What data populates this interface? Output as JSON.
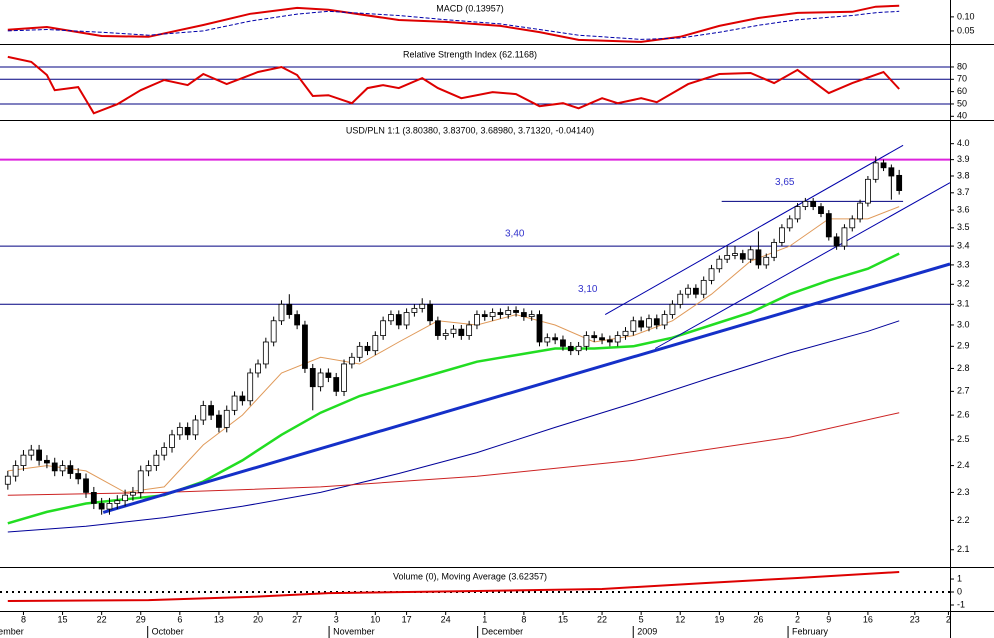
{
  "chart_data": [
    {
      "type": "line",
      "title": "MACD (0.13957)",
      "xlim": [
        -1,
        120.5
      ],
      "ylim": [
        0,
        0.16
      ],
      "yticks": [
        {
          "value": 0.1,
          "label": "0.10"
        },
        {
          "value": 0.05,
          "label": "0.05"
        }
      ],
      "series": [
        {
          "x": [
            0,
            5,
            12,
            18,
            25,
            31,
            37,
            41,
            50,
            56,
            63,
            68,
            73,
            81,
            86,
            91,
            96,
            101,
            108,
            111,
            114
          ],
          "values": [
            0.054,
            0.064,
            0.032,
            0.029,
            0.071,
            0.111,
            0.132,
            0.125,
            0.089,
            0.082,
            0.068,
            0.046,
            0.018,
            0.011,
            0.029,
            0.068,
            0.096,
            0.114,
            0.118,
            0.136,
            0.1396
          ],
          "color": "#dd0000",
          "width": 2
        },
        {
          "x": [
            0,
            5,
            12,
            18,
            25,
            31,
            37,
            41,
            50,
            56,
            63,
            68,
            73,
            81,
            86,
            91,
            96,
            101,
            108,
            111,
            114
          ],
          "values": [
            0.05,
            0.055,
            0.045,
            0.035,
            0.05,
            0.085,
            0.11,
            0.12,
            0.105,
            0.09,
            0.075,
            0.055,
            0.035,
            0.02,
            0.025,
            0.045,
            0.07,
            0.09,
            0.105,
            0.115,
            0.12
          ],
          "color": "#0000aa",
          "width": 1,
          "dash": true
        }
      ]
    },
    {
      "type": "line",
      "title": "Relative Strength Index (62.1168)",
      "xlim": [
        -1,
        120.5
      ],
      "ylim": [
        37,
        97
      ],
      "yticks": [
        80,
        70,
        60,
        50,
        40
      ],
      "hlines": [
        80,
        70,
        50
      ],
      "hline_color": "#000080",
      "series": [
        {
          "x": [
            0,
            3,
            5,
            6,
            9,
            10,
            11,
            14,
            17,
            20,
            23,
            25,
            28,
            32,
            35,
            37,
            39,
            41,
            44,
            46,
            48,
            50,
            53,
            55,
            58,
            62,
            65,
            68,
            71,
            73,
            76,
            78,
            81,
            83,
            87,
            91,
            95,
            98,
            101,
            105,
            108,
            112,
            114
          ],
          "values": [
            88.2,
            84.1,
            73.5,
            61.2,
            63.7,
            53.1,
            42.4,
            49.8,
            61.2,
            69.4,
            65.3,
            74.3,
            66.1,
            75.9,
            80,
            73.5,
            56.5,
            57.1,
            50.6,
            62.9,
            65.3,
            62.9,
            71,
            62.9,
            54.7,
            59.6,
            58,
            48.2,
            50.6,
            46.5,
            54.7,
            50.6,
            54.7,
            51.4,
            66.1,
            74.3,
            75.1,
            66.9,
            77.6,
            58.8,
            66.9,
            75.9,
            62.1
          ],
          "color": "#dd0000",
          "width": 2
        }
      ]
    },
    {
      "type": "candlestick",
      "title": "USD/PLN 1:1 (3.80380, 3.83700, 3.68980, 3.71320, -0.04140)",
      "log": true,
      "xlim": [
        -1,
        120.5
      ],
      "ylim": [
        2.04,
        4.14
      ],
      "yticks": [
        {
          "value": 4,
          "label": "4.0"
        },
        3.9,
        3.8,
        3.7,
        3.6,
        3.5,
        3.4,
        3.3,
        3.2,
        3.1,
        {
          "value": 3,
          "label": "3.0"
        },
        2.9,
        2.8,
        2.7,
        2.6,
        2.5,
        2.4,
        2.3,
        2.2,
        2.1
      ],
      "up_color": "#ffffff",
      "down_color": "#000000",
      "open": [
        2.33,
        2.36,
        2.4,
        2.44,
        2.46,
        2.42,
        2.41,
        2.38,
        2.4,
        2.37,
        2.35,
        2.3,
        2.26,
        2.24,
        2.26,
        2.27,
        2.29,
        2.3,
        2.38,
        2.4,
        2.44,
        2.47,
        2.52,
        2.55,
        2.52,
        2.58,
        2.64,
        2.6,
        2.55,
        2.62,
        2.68,
        2.66,
        2.78,
        2.82,
        2.92,
        3.02,
        3.1,
        3.05,
        3.0,
        2.8,
        2.72,
        2.78,
        2.76,
        2.7,
        2.82,
        2.85,
        2.9,
        2.88,
        2.95,
        3.02,
        3.05,
        3.0,
        3.06,
        3.08,
        3.1,
        3.02,
        2.95,
        2.96,
        2.98,
        2.95,
        3.0,
        3.05,
        3.04,
        3.06,
        3.05,
        3.07,
        3.06,
        3.04,
        3.05,
        2.92,
        2.94,
        2.93,
        2.9,
        2.88,
        2.9,
        2.95,
        2.94,
        2.93,
        2.92,
        2.95,
        2.97,
        3.02,
        2.99,
        3.03,
        3.0,
        3.05,
        3.1,
        3.15,
        3.18,
        3.15,
        3.22,
        3.28,
        3.33,
        3.35,
        3.36,
        3.33,
        3.38,
        3.3,
        3.34,
        3.42,
        3.5,
        3.55,
        3.62,
        3.65,
        3.62,
        3.58,
        3.45,
        3.4,
        3.5,
        3.55,
        3.64,
        3.78,
        3.88,
        3.85,
        3.8038
      ],
      "high": [
        2.38,
        2.42,
        2.46,
        2.48,
        2.48,
        2.44,
        2.43,
        2.42,
        2.42,
        2.39,
        2.37,
        2.32,
        2.28,
        2.28,
        2.29,
        2.31,
        2.32,
        2.4,
        2.42,
        2.46,
        2.49,
        2.54,
        2.57,
        2.57,
        2.6,
        2.66,
        2.66,
        2.62,
        2.64,
        2.7,
        2.7,
        2.8,
        2.84,
        2.94,
        3.04,
        3.12,
        3.15,
        3.07,
        3.02,
        2.82,
        2.8,
        2.8,
        2.78,
        2.84,
        2.87,
        2.92,
        2.92,
        2.97,
        3.04,
        3.07,
        3.07,
        3.08,
        3.1,
        3.13,
        3.12,
        3.04,
        2.98,
        3.0,
        3.0,
        3.02,
        3.07,
        3.07,
        3.08,
        3.08,
        3.09,
        3.09,
        3.08,
        3.07,
        3.07,
        2.96,
        2.96,
        2.95,
        2.92,
        2.92,
        2.97,
        2.97,
        2.96,
        2.95,
        2.97,
        2.99,
        3.04,
        3.04,
        3.05,
        3.05,
        3.07,
        3.12,
        3.17,
        3.2,
        3.2,
        3.24,
        3.3,
        3.35,
        3.4,
        3.4,
        3.38,
        3.4,
        3.48,
        3.36,
        3.44,
        3.52,
        3.57,
        3.64,
        3.67,
        3.67,
        3.64,
        3.6,
        3.47,
        3.52,
        3.57,
        3.66,
        3.8,
        3.92,
        3.9,
        3.87,
        3.837
      ],
      "low": [
        2.31,
        2.34,
        2.38,
        2.42,
        2.4,
        2.39,
        2.36,
        2.36,
        2.35,
        2.33,
        2.28,
        2.24,
        2.22,
        2.22,
        2.24,
        2.25,
        2.27,
        2.28,
        2.36,
        2.38,
        2.42,
        2.45,
        2.5,
        2.5,
        2.5,
        2.56,
        2.58,
        2.53,
        2.53,
        2.6,
        2.64,
        2.64,
        2.76,
        2.8,
        2.9,
        3.0,
        3.03,
        2.98,
        2.78,
        2.62,
        2.7,
        2.74,
        2.68,
        2.68,
        2.8,
        2.83,
        2.86,
        2.86,
        2.93,
        3.0,
        2.98,
        2.98,
        3.04,
        3.06,
        3.0,
        2.93,
        2.93,
        2.94,
        2.93,
        2.93,
        2.98,
        3.02,
        3.02,
        3.03,
        3.03,
        3.04,
        3.02,
        3.02,
        2.9,
        2.9,
        2.91,
        2.88,
        2.86,
        2.86,
        2.88,
        2.92,
        2.91,
        2.9,
        2.9,
        2.93,
        2.95,
        2.97,
        2.97,
        2.98,
        2.98,
        3.03,
        3.08,
        3.13,
        3.13,
        3.13,
        3.2,
        3.26,
        3.31,
        3.33,
        3.31,
        3.31,
        3.28,
        3.28,
        3.32,
        3.4,
        3.48,
        3.53,
        3.6,
        3.6,
        3.56,
        3.43,
        3.38,
        3.38,
        3.48,
        3.53,
        3.62,
        3.76,
        3.83,
        3.66,
        3.6898
      ],
      "close": [
        2.36,
        2.4,
        2.44,
        2.46,
        2.42,
        2.41,
        2.38,
        2.4,
        2.37,
        2.35,
        2.3,
        2.26,
        2.24,
        2.26,
        2.27,
        2.29,
        2.3,
        2.38,
        2.4,
        2.44,
        2.47,
        2.52,
        2.55,
        2.52,
        2.58,
        2.64,
        2.6,
        2.55,
        2.62,
        2.68,
        2.66,
        2.78,
        2.82,
        2.92,
        3.02,
        3.1,
        3.05,
        3.0,
        2.8,
        2.72,
        2.78,
        2.76,
        2.7,
        2.82,
        2.85,
        2.9,
        2.88,
        2.95,
        3.02,
        3.05,
        3.0,
        3.06,
        3.08,
        3.1,
        3.02,
        2.95,
        2.96,
        2.98,
        2.95,
        3.0,
        3.05,
        3.04,
        3.06,
        3.05,
        3.07,
        3.06,
        3.04,
        3.05,
        2.92,
        2.94,
        2.93,
        2.9,
        2.88,
        2.9,
        2.95,
        2.94,
        2.93,
        2.92,
        2.95,
        2.97,
        3.02,
        2.99,
        3.03,
        3.0,
        3.05,
        3.1,
        3.15,
        3.18,
        3.15,
        3.22,
        3.28,
        3.33,
        3.35,
        3.36,
        3.33,
        3.38,
        3.3,
        3.34,
        3.42,
        3.5,
        3.55,
        3.62,
        3.65,
        3.62,
        3.58,
        3.45,
        3.4,
        3.5,
        3.55,
        3.64,
        3.78,
        3.88,
        3.85,
        3.8,
        3.7132
      ],
      "series": [
        {
          "x": [
            0,
            5,
            10,
            15,
            20,
            25,
            30,
            35,
            40,
            45,
            50,
            55,
            60,
            65,
            70,
            75,
            80,
            85,
            90,
            95,
            100,
            105,
            110,
            114
          ],
          "values": [
            2.38,
            2.4,
            2.38,
            2.3,
            2.32,
            2.48,
            2.6,
            2.78,
            2.85,
            2.82,
            2.92,
            3.02,
            3.0,
            3.05,
            3.0,
            2.92,
            2.95,
            3.02,
            3.15,
            3.32,
            3.4,
            3.55,
            3.55,
            3.62
          ],
          "color": "#e09a5a",
          "width": 1
        },
        {
          "x": [
            0,
            5,
            10,
            15,
            20,
            25,
            30,
            35,
            40,
            45,
            50,
            55,
            60,
            65,
            70,
            75,
            80,
            85,
            90,
            95,
            100,
            105,
            110,
            114
          ],
          "values": [
            2.19,
            2.23,
            2.26,
            2.275,
            2.29,
            2.34,
            2.42,
            2.52,
            2.61,
            2.68,
            2.73,
            2.78,
            2.83,
            2.86,
            2.89,
            2.89,
            2.9,
            2.94,
            3.0,
            3.06,
            3.15,
            3.22,
            3.28,
            3.36
          ],
          "color": "#22dd22",
          "width": 2.5
        },
        {
          "x": [
            0,
            10,
            20,
            30,
            40,
            50,
            60,
            70,
            80,
            90,
            100,
            110,
            114
          ],
          "values": [
            2.16,
            2.18,
            2.21,
            2.25,
            2.3,
            2.37,
            2.45,
            2.55,
            2.65,
            2.76,
            2.87,
            2.97,
            3.02
          ],
          "color": "#000099",
          "width": 1
        },
        {
          "x": [
            0,
            20,
            40,
            60,
            80,
            100,
            114
          ],
          "values": [
            2.29,
            2.3,
            2.32,
            2.36,
            2.42,
            2.51,
            2.61
          ],
          "color": "#cc2222",
          "width": 1
        },
        {
          "x": [
            12.2,
            120.5
          ],
          "values": [
            2.228,
            3.305
          ],
          "color": "#1530c8",
          "width": 3
        },
        {
          "x": [
            76.4,
            114.5
          ],
          "values": [
            3.05,
            3.99
          ],
          "color": "#0000aa",
          "width": 1
        },
        {
          "x": [
            82.8,
            120.5
          ],
          "values": [
            2.89,
            3.76
          ],
          "color": "#0000aa",
          "width": 1
        }
      ],
      "levels": [
        {
          "value": 3.9,
          "color": "#dd22dd",
          "width": 2
        },
        {
          "value": 3.4,
          "label": "3,40",
          "color": "#000080",
          "width": 1
        },
        {
          "value": 3.1,
          "label": "3,10",
          "color": "#000080",
          "width": 1
        },
        {
          "value": 3.65,
          "label": "3,65",
          "x": [
            91.3,
            114.5
          ],
          "color": "#000080",
          "width": 1
        }
      ]
    },
    {
      "type": "line",
      "title": "Volume (0), Moving Average (3.62357)",
      "xlim": [
        -1,
        120.5
      ],
      "ylim": [
        -1.54,
        1.85
      ],
      "yticks": [
        1,
        0,
        -1
      ],
      "hlines": [
        0
      ],
      "hline_color": "#000000",
      "hline_style": "dotted",
      "series": [
        {
          "x": [
            0,
            18,
            31,
            41,
            60,
            76,
            89,
            101,
            114
          ],
          "values": [
            -0.69,
            -0.62,
            -0.38,
            -0.08,
            0.08,
            0.23,
            0.69,
            1.08,
            1.54
          ],
          "color": "#dd0000",
          "width": 2
        }
      ],
      "xticks": [
        {
          "value": 2,
          "label": "8"
        },
        {
          "value": 7,
          "label": "15"
        },
        {
          "value": 12,
          "label": "22"
        },
        {
          "value": 17,
          "label": "29"
        },
        {
          "value": 22,
          "label": "6"
        },
        {
          "value": 27,
          "label": "13"
        },
        {
          "value": 32,
          "label": "20"
        },
        {
          "value": 37,
          "label": "27"
        },
        {
          "value": 42,
          "label": "3"
        },
        {
          "value": 47,
          "label": "10"
        },
        {
          "value": 51,
          "label": "17"
        },
        {
          "value": 56,
          "label": "24"
        },
        {
          "value": 61,
          "label": "1"
        },
        {
          "value": 66,
          "label": "8"
        },
        {
          "value": 71,
          "label": "15"
        },
        {
          "value": 76,
          "label": "22"
        },
        {
          "value": 81,
          "label": "5"
        },
        {
          "value": 86,
          "label": "12"
        },
        {
          "value": 91,
          "label": "19"
        },
        {
          "value": 96,
          "label": "26"
        },
        {
          "value": 101,
          "label": "2"
        },
        {
          "value": 105,
          "label": "9"
        },
        {
          "value": 110,
          "label": "16"
        },
        {
          "value": 116,
          "label": "23"
        },
        {
          "value": 120.3,
          "label": "2"
        }
      ],
      "month_ticks": [
        {
          "value": -3.6,
          "label": "September"
        },
        {
          "value": 18.4,
          "label": "October"
        },
        {
          "value": 41.6,
          "label": "November"
        },
        {
          "value": 60.6,
          "label": "December"
        },
        {
          "value": 80.5,
          "label": "2009"
        },
        {
          "value": 100.3,
          "label": "February"
        }
      ]
    }
  ]
}
